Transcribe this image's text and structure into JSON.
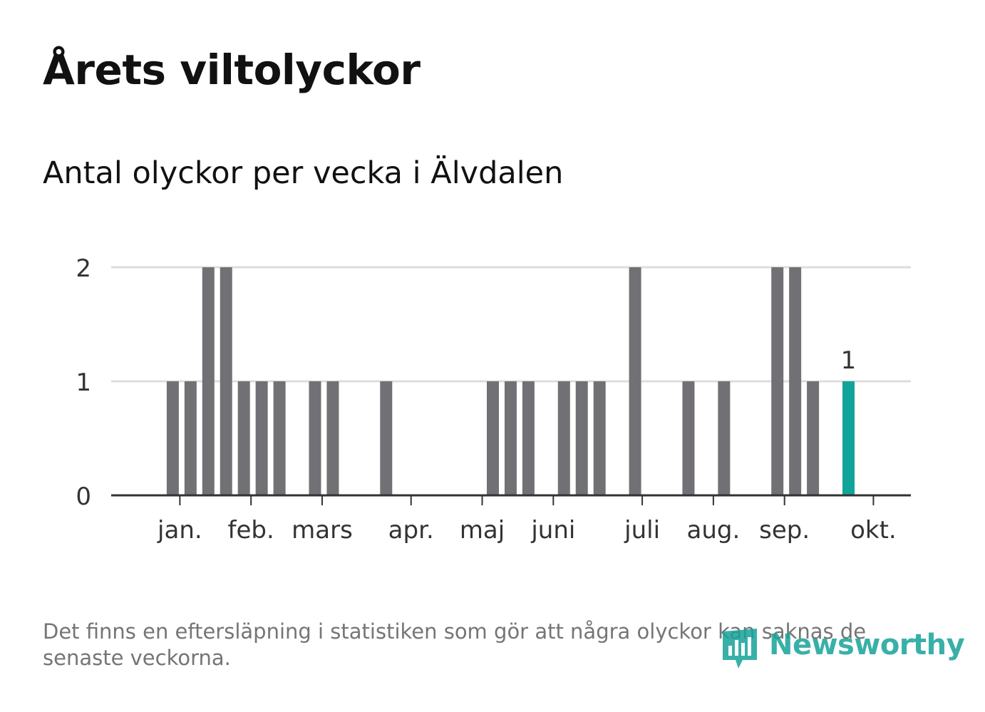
{
  "title": "Årets viltolyckor",
  "subtitle": "Antal olyckor per vecka i Älvdalen",
  "footnote": "Det finns en eftersläpning i statistiken som gör att några olyckor kan saknas de senaste veckorna.",
  "brand": {
    "name": "Newsworthy",
    "icon": "newsworthy-logo-icon"
  },
  "colors": {
    "bar": "#717075",
    "highlight": "#12a39a",
    "grid": "#dddddd",
    "axis": "#333333",
    "brand": "#16a39a"
  },
  "chart_data": {
    "type": "bar",
    "title": "Antal olyckor per vecka i Älvdalen",
    "xlabel": "",
    "ylabel": "",
    "ylim": [
      0,
      2
    ],
    "yticks": [
      0,
      1,
      2
    ],
    "grid": true,
    "weeks": [
      1,
      2,
      3,
      4,
      5,
      6,
      7,
      8,
      9,
      10,
      11,
      12,
      13,
      14,
      15,
      16,
      17,
      18,
      19,
      20,
      21,
      22,
      23,
      24,
      25,
      26,
      27,
      28,
      29,
      30,
      31,
      32,
      33,
      34,
      35,
      36,
      37,
      38,
      39,
      40,
      41
    ],
    "values": [
      0,
      0,
      1,
      1,
      2,
      2,
      1,
      1,
      1,
      0,
      1,
      1,
      0,
      0,
      1,
      0,
      0,
      0,
      0,
      0,
      1,
      1,
      1,
      0,
      1,
      1,
      1,
      0,
      2,
      0,
      0,
      1,
      0,
      1,
      0,
      0,
      2,
      2,
      1,
      0,
      1
    ],
    "highlight_index": 40,
    "highlight_label": "1",
    "month_labels": [
      {
        "label": "jan.",
        "week": 3.4
      },
      {
        "label": "feb.",
        "week": 7.4
      },
      {
        "label": "mars",
        "week": 11.4
      },
      {
        "label": "apr.",
        "week": 16.4
      },
      {
        "label": "maj",
        "week": 20.4
      },
      {
        "label": "juni",
        "week": 24.4
      },
      {
        "label": "juli",
        "week": 29.4
      },
      {
        "label": "aug.",
        "week": 33.4
      },
      {
        "label": "sep.",
        "week": 37.4
      },
      {
        "label": "okt.",
        "week": 42.4
      }
    ]
  }
}
